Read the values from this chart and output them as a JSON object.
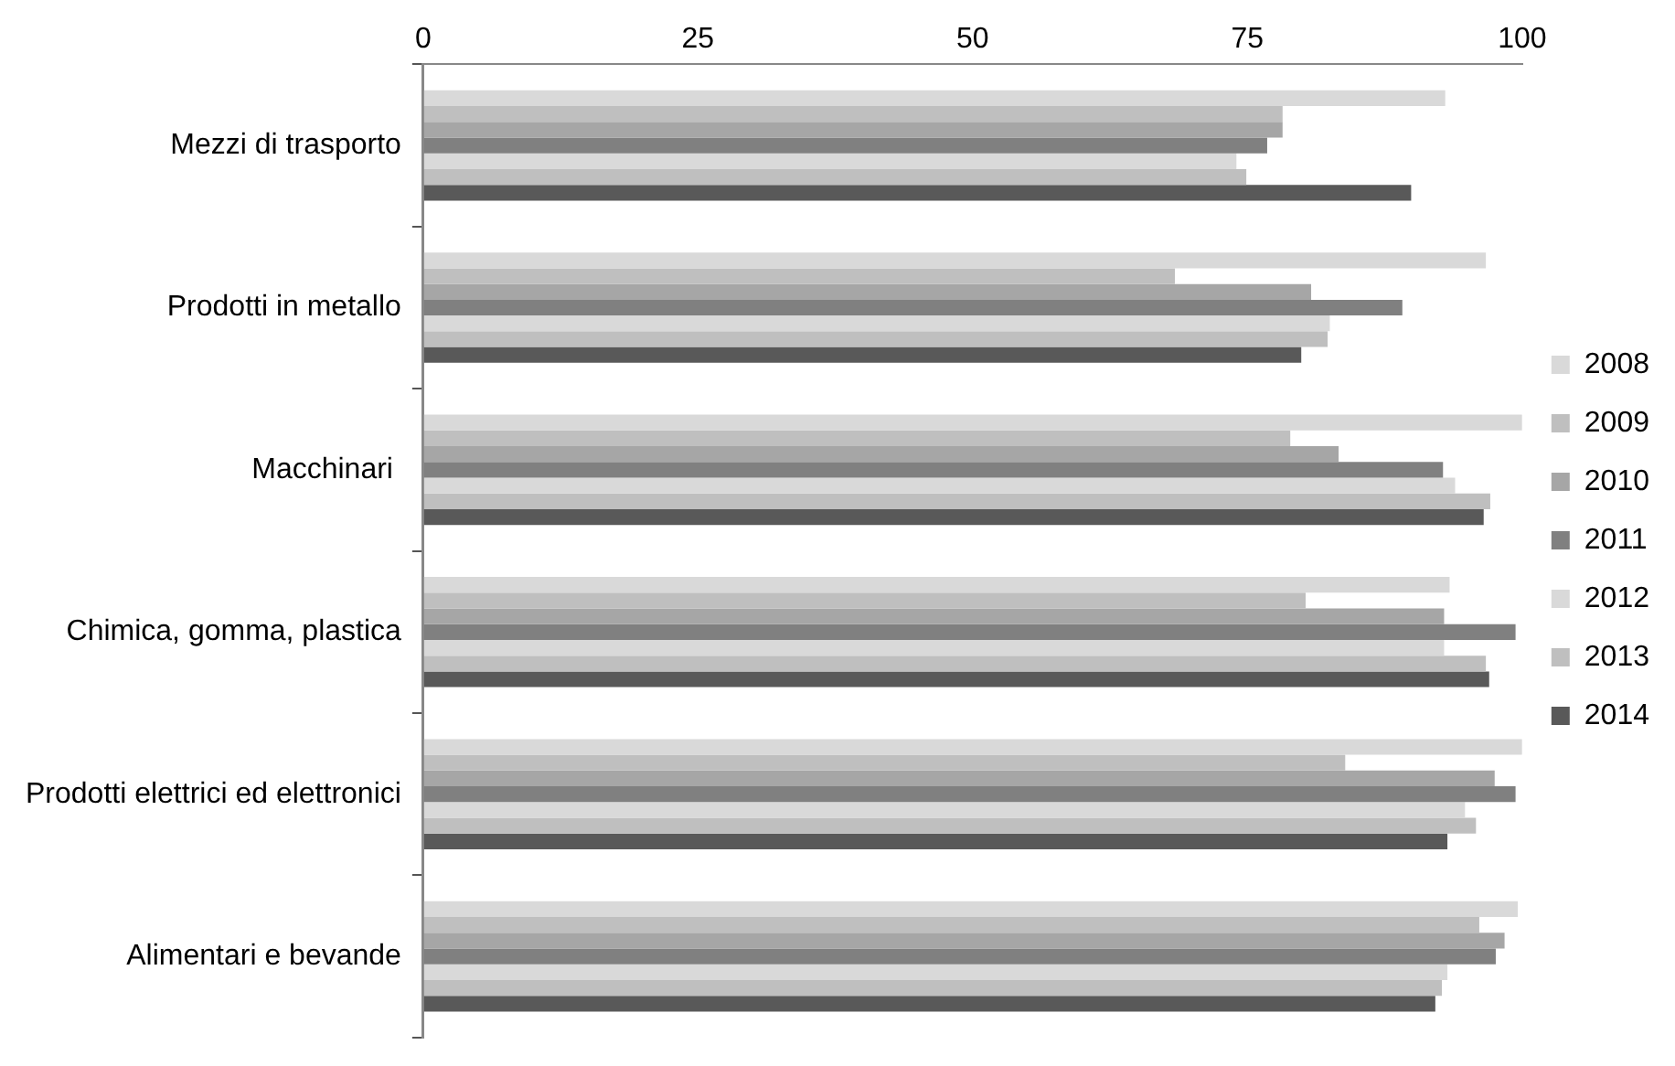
{
  "chart_data": {
    "type": "bar",
    "orientation": "horizontal",
    "categories": [
      "Mezzi di trasporto",
      "Prodotti in metallo",
      "Macchinari ",
      "Chimica, gomma, plastica",
      "Prodotti elettrici ed elettronici",
      "Alimentari e bevande"
    ],
    "series": [
      {
        "name": "2008",
        "color": "#d9d9d9",
        "values": [
          93.0,
          96.7,
          100,
          93.4,
          100,
          99.6
        ]
      },
      {
        "name": "2009",
        "color": "#bfbfbf",
        "values": [
          78.2,
          68.4,
          78.9,
          80.3,
          83.9,
          96.1
        ]
      },
      {
        "name": "2010",
        "color": "#a6a6a6",
        "values": [
          78.2,
          80.8,
          83.3,
          92.9,
          97.5,
          98.4
        ]
      },
      {
        "name": "2011",
        "color": "#808080",
        "values": [
          76.8,
          89.1,
          92.8,
          99.4,
          99.4,
          97.6
        ]
      },
      {
        "name": "2012",
        "color": "#d9d9d9",
        "values": [
          74.0,
          82.5,
          93.9,
          92.9,
          94.8,
          93.2
        ]
      },
      {
        "name": "2013",
        "color": "#bfbfbf",
        "values": [
          74.9,
          82.3,
          97.1,
          96.7,
          95.8,
          92.7
        ]
      },
      {
        "name": "2014",
        "color": "#595959",
        "values": [
          89.9,
          79.9,
          96.5,
          97.0,
          93.2,
          92.1
        ]
      }
    ],
    "xlim": [
      0,
      100
    ],
    "xticks": [
      0,
      25,
      50,
      75,
      100
    ],
    "grid": false,
    "legend": "right"
  }
}
